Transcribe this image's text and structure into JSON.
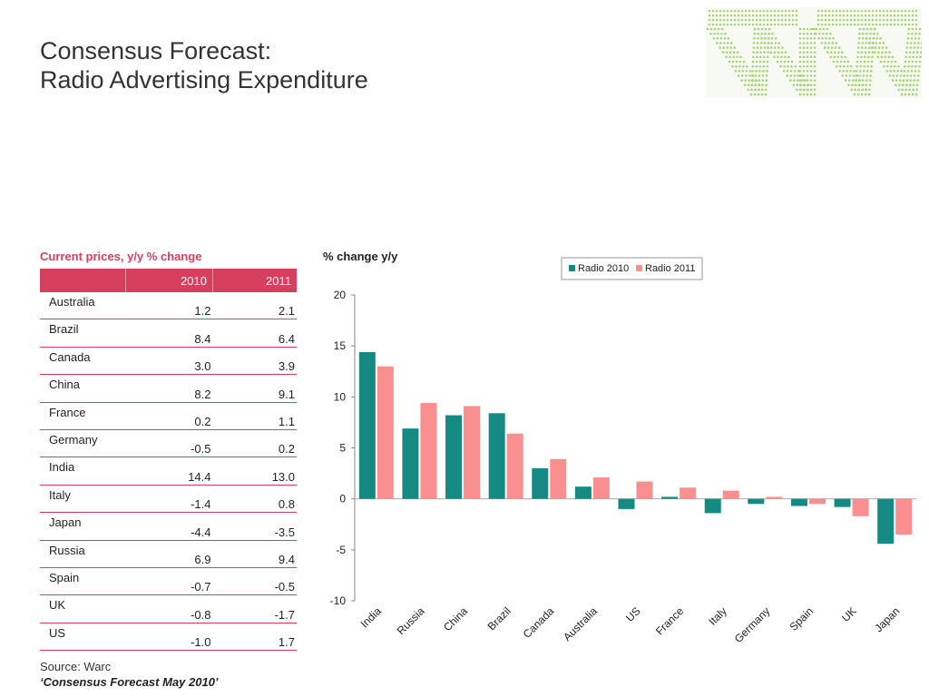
{
  "header": {
    "title_line1": "Consensus Forecast:",
    "title_line2": "Radio Advertising Expenditure"
  },
  "table": {
    "caption": "Current prices, y/y % change",
    "columns": [
      "",
      "2010",
      "2011"
    ],
    "rows": [
      {
        "country": "Australia",
        "v2010": "1.2",
        "v2011": "2.1"
      },
      {
        "country": "Brazil",
        "v2010": "8.4",
        "v2011": "6.4"
      },
      {
        "country": "Canada",
        "v2010": "3.0",
        "v2011": "3.9"
      },
      {
        "country": "China",
        "v2010": "8.2",
        "v2011": "9.1"
      },
      {
        "country": "France",
        "v2010": "0.2",
        "v2011": "1.1"
      },
      {
        "country": "Germany",
        "v2010": "-0.5",
        "v2011": "0.2"
      },
      {
        "country": "India",
        "v2010": "14.4",
        "v2011": "13.0"
      },
      {
        "country": "Italy",
        "v2010": "-1.4",
        "v2011": "0.8"
      },
      {
        "country": "Japan",
        "v2010": "-4.4",
        "v2011": "-3.5"
      },
      {
        "country": "Russia",
        "v2010": "6.9",
        "v2011": "9.4"
      },
      {
        "country": "Spain",
        "v2010": "-0.7",
        "v2011": "-0.5"
      },
      {
        "country": "UK",
        "v2010": "-0.8",
        "v2011": "-1.7"
      },
      {
        "country": "US",
        "v2010": "-1.0",
        "v2011": "1.7"
      }
    ]
  },
  "footer": {
    "source": "Source: Warc",
    "publication": "‘Consensus Forecast May 2010’"
  },
  "colors": {
    "accent": "#d6405e",
    "series_2010": "#158a82",
    "series_2011": "#fa8f8f",
    "logo": "#a8d47a"
  },
  "chart_data": {
    "type": "bar",
    "title": "% change y/y",
    "categories": [
      "India",
      "Russia",
      "China",
      "Brazil",
      "Canada",
      "Australia",
      "US",
      "France",
      "Italy",
      "Germany",
      "Spain",
      "UK",
      "Japan"
    ],
    "series": [
      {
        "name": "Radio 2010",
        "values": [
          14.4,
          6.9,
          8.2,
          8.4,
          3.0,
          1.2,
          -1.0,
          0.2,
          -1.4,
          -0.5,
          -0.7,
          -0.8,
          -4.4
        ]
      },
      {
        "name": "Radio 2011",
        "values": [
          13.0,
          9.4,
          9.1,
          6.4,
          3.9,
          2.1,
          1.7,
          1.1,
          0.8,
          0.2,
          -0.5,
          -1.7,
          -3.5
        ]
      }
    ],
    "ylim": [
      -10,
      20
    ],
    "yticks": [
      20,
      15,
      10,
      5,
      0,
      -5,
      -10
    ],
    "grid": false,
    "legend_position": "top-right"
  }
}
